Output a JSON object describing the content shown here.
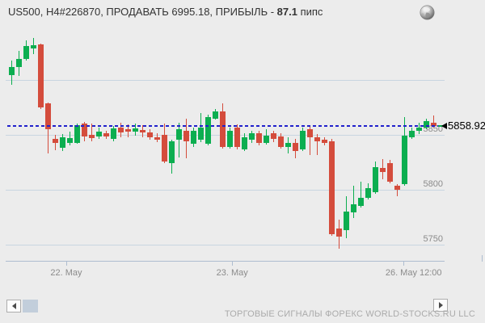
{
  "header": {
    "title_prefix": "US500, H4#226870, ПРОДАВАТЬ 6995.18, ПРИБЫЛЬ - ",
    "profit_value": "87.1",
    "title_suffix": " пипс"
  },
  "footer": {
    "watermark": "ТОРГОВЫЕ СИГНАЛЫ ФОРЕКС WORLD-STOCKS.RU LLC"
  },
  "icons": {
    "header_globe": "globe",
    "scroll_left": "left-triangle",
    "scroll_right": "right-triangle",
    "price_marker": "left-arrowhead"
  },
  "colors": {
    "background": "#ececec",
    "bull": "#0cae50",
    "bear": "#d44c3c",
    "grid": "#c8d5e0",
    "axis": "#aebdd0",
    "dashed_line": "#2121cc",
    "label_gray": "#8b8b8b",
    "title_text": "#333333",
    "price_marker_text": "#000000",
    "watermark": "#ababab",
    "scroll_thumb": "#c2cedb"
  },
  "chart_data": {
    "type": "candlestick",
    "instrument": "US500",
    "timeframe": "H4",
    "title": "US500 H4 candlestick price chart",
    "grid": true,
    "current_price": 5858.92,
    "current_price_label": "5858.92",
    "pending_open_price": 5858.9,
    "ylim": [
      5736,
      5944
    ],
    "y_gridlines": [
      {
        "price": 5900,
        "label": ""
      },
      {
        "price": 5850,
        "label": "5850"
      },
      {
        "price": 5800,
        "label": "5800"
      },
      {
        "price": 5750,
        "label": "5750"
      }
    ],
    "x_ticks": [
      {
        "label": "22. May",
        "index": 7.5,
        "label_dx": 0
      },
      {
        "label": "23. May",
        "index": 30.3,
        "label_dx": 0
      },
      {
        "label": "26. May 12:00",
        "index": 53.8,
        "label_dx": 13
      }
    ],
    "candles": [
      [
        5905,
        5918.5,
        5896.5,
        5912.5
      ],
      [
        5912.5,
        5927,
        5904,
        5920
      ],
      [
        5920,
        5937,
        5918.5,
        5931.5
      ],
      [
        5929,
        5939,
        5924.5,
        5932.5
      ],
      [
        5933,
        5934,
        5874.5,
        5876
      ],
      [
        5879.5,
        5880,
        5834,
        5856
      ],
      [
        5847,
        5851,
        5837,
        5843.5
      ],
      [
        5839,
        5851.5,
        5836,
        5848.5
      ],
      [
        5843.5,
        5853.5,
        5841,
        5848
      ],
      [
        5843.5,
        5861,
        5842.5,
        5859.5
      ],
      [
        5861,
        5862.5,
        5845,
        5849.5
      ],
      [
        5850.5,
        5861,
        5845,
        5848
      ],
      [
        5849.5,
        5857.5,
        5847,
        5853.5
      ],
      [
        5852,
        5854.5,
        5847,
        5849.5
      ],
      [
        5847,
        5859,
        5845,
        5856.5
      ],
      [
        5857.5,
        5862,
        5848.5,
        5853
      ],
      [
        5856,
        5860.5,
        5848.5,
        5853.5
      ],
      [
        5853.5,
        5861,
        5850,
        5856.5
      ],
      [
        5855,
        5859.5,
        5848.5,
        5853
      ],
      [
        5853,
        5856,
        5846.5,
        5848.5
      ],
      [
        5848.5,
        5852,
        5844,
        5846.5
      ],
      [
        5851,
        5861,
        5825,
        5826.5
      ],
      [
        5825,
        5846,
        5815.5,
        5845
      ],
      [
        5846.5,
        5862,
        5830,
        5856
      ],
      [
        5854.5,
        5865,
        5829,
        5845
      ],
      [
        5842.5,
        5857.5,
        5839.5,
        5854
      ],
      [
        5846,
        5870.5,
        5844,
        5857.5
      ],
      [
        5842.5,
        5869,
        5841,
        5867
      ],
      [
        5865.5,
        5874.5,
        5864.5,
        5872
      ],
      [
        5872,
        5879.5,
        5838,
        5839.5
      ],
      [
        5839.5,
        5857.5,
        5838,
        5854
      ],
      [
        5857.5,
        5860.5,
        5837.5,
        5839.5
      ],
      [
        5837.5,
        5852,
        5836,
        5848.5
      ],
      [
        5846,
        5854.5,
        5843.5,
        5852
      ],
      [
        5852,
        5854.5,
        5841,
        5843.5
      ],
      [
        5843.5,
        5856,
        5842,
        5850
      ],
      [
        5852,
        5854.5,
        5844,
        5847
      ],
      [
        5849.5,
        5852,
        5838,
        5839.5
      ],
      [
        5839.5,
        5848.5,
        5834,
        5843.5
      ],
      [
        5843.5,
        5847,
        5829,
        5836
      ],
      [
        5837.5,
        5857.5,
        5836,
        5854.5
      ],
      [
        5856,
        5858,
        5832.5,
        5848.5
      ],
      [
        5848.5,
        5851.5,
        5832.5,
        5845
      ],
      [
        5846,
        5848.5,
        5841,
        5843.5
      ],
      [
        5845,
        5847,
        5759,
        5760.5
      ],
      [
        5765.5,
        5773.5,
        5747,
        5758
      ],
      [
        5764,
        5795,
        5756.5,
        5781
      ],
      [
        5780,
        5804.5,
        5775,
        5787.5
      ],
      [
        5786,
        5808,
        5784.5,
        5793.5
      ],
      [
        5793.5,
        5806.5,
        5792,
        5802
      ],
      [
        5798.5,
        5826.5,
        5797,
        5821.5
      ],
      [
        5820.5,
        5828.5,
        5810.5,
        5817
      ],
      [
        5825,
        5828,
        5806.5,
        5808
      ],
      [
        5804.5,
        5806,
        5795,
        5800.5
      ],
      [
        5806,
        5867,
        5804.5,
        5850
      ],
      [
        5848.5,
        5857.5,
        5847,
        5854.5
      ],
      [
        5854.5,
        5862,
        5851.5,
        5857.5
      ],
      [
        5857.5,
        5865.5,
        5856,
        5863
      ],
      [
        5862,
        5868.5,
        5857.5,
        5859
      ]
    ]
  }
}
